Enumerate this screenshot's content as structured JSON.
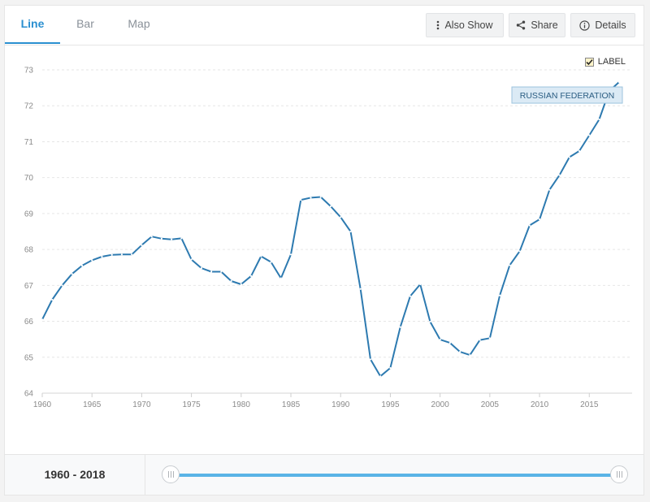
{
  "tabs": [
    {
      "label": "Line",
      "active": true
    },
    {
      "label": "Bar",
      "active": false
    },
    {
      "label": "Map",
      "active": false
    }
  ],
  "toolbar": {
    "also_show_label": "Also Show",
    "share_label": "Share",
    "details_label": "Details"
  },
  "legend": {
    "checkbox_label": "LABEL",
    "checked": true
  },
  "footer": {
    "range_label": "1960 - 2018"
  },
  "colors": {
    "line": "#2d7ab0",
    "accent": "#2a8fd0",
    "slider": "#5ab4e6"
  },
  "chart_data": {
    "type": "line",
    "title": "",
    "xlabel": "",
    "ylabel": "",
    "xlim": [
      1960,
      2018
    ],
    "ylim": [
      64,
      73
    ],
    "x_ticks": [
      1960,
      1965,
      1970,
      1975,
      1980,
      1985,
      1990,
      1995,
      2000,
      2005,
      2010,
      2015
    ],
    "y_ticks": [
      64,
      65,
      66,
      67,
      68,
      69,
      70,
      71,
      72,
      73
    ],
    "grid": true,
    "series": [
      {
        "name": "RUSSIAN FEDERATION",
        "x": [
          1960,
          1961,
          1962,
          1963,
          1964,
          1965,
          1966,
          1967,
          1968,
          1969,
          1970,
          1971,
          1972,
          1973,
          1974,
          1975,
          1976,
          1977,
          1978,
          1979,
          1980,
          1981,
          1982,
          1983,
          1984,
          1985,
          1986,
          1987,
          1988,
          1989,
          1990,
          1991,
          1992,
          1993,
          1994,
          1995,
          1996,
          1997,
          1998,
          1999,
          2000,
          2001,
          2002,
          2003,
          2004,
          2005,
          2006,
          2007,
          2008,
          2009,
          2010,
          2011,
          2012,
          2013,
          2014,
          2015,
          2016,
          2017,
          2018
        ],
        "values": [
          66.05,
          66.6,
          67.0,
          67.32,
          67.55,
          67.7,
          67.8,
          67.85,
          67.86,
          67.86,
          68.12,
          68.36,
          68.3,
          68.28,
          68.31,
          67.72,
          67.48,
          67.38,
          67.38,
          67.12,
          67.03,
          67.26,
          67.81,
          67.65,
          67.2,
          67.86,
          69.38,
          69.44,
          69.46,
          69.2,
          68.9,
          68.5,
          66.9,
          64.94,
          64.47,
          64.7,
          65.84,
          66.7,
          67.03,
          65.99,
          65.49,
          65.4,
          65.15,
          65.06,
          65.48,
          65.53,
          66.72,
          67.56,
          67.95,
          68.67,
          68.84,
          69.66,
          70.07,
          70.57,
          70.74,
          71.18,
          71.62,
          72.41,
          72.66
        ]
      }
    ],
    "annotations": [
      {
        "text": "RUSSIAN FEDERATION",
        "series": 0,
        "at_x": 2018
      }
    ]
  }
}
